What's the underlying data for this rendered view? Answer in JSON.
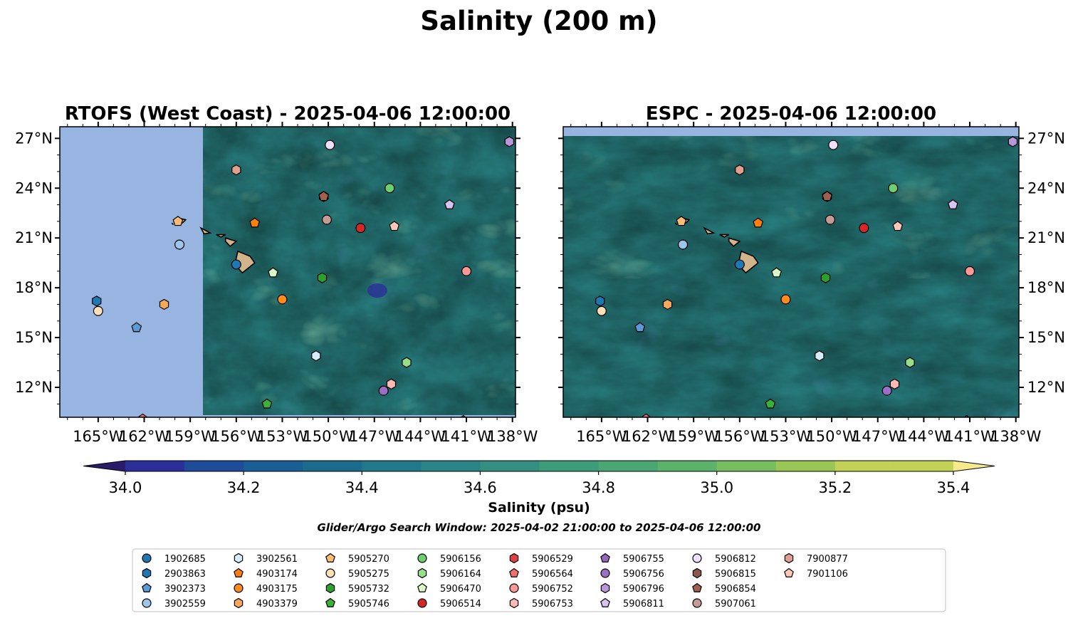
{
  "figure": {
    "title": "Salinity (200 m)",
    "colorbar_label": "Salinity (psu)",
    "search_window": "Glider/Argo Search Window: 2025-04-02 21:00:00 to 2025-04-06 12:00:00"
  },
  "colors": {
    "land_mask": "#98b4e0",
    "islands": "#d2b48c",
    "cmap": [
      "#2a1c6b",
      "#2c2f9a",
      "#1f4c9a",
      "#1a5e96",
      "#1a6b8c",
      "#21788a",
      "#2a8384",
      "#348f80",
      "#3c9c7a",
      "#4aa774",
      "#5cb26b",
      "#78bd5f",
      "#99c654",
      "#c3d157",
      "#f7ea8c"
    ]
  },
  "colorbar": {
    "ticks": [
      "34.0",
      "34.2",
      "34.4",
      "34.6",
      "34.8",
      "35.0",
      "35.2",
      "35.4"
    ],
    "min": 34.0,
    "max": 35.4,
    "step": 0.1
  },
  "axes": {
    "lon_ticks": [
      "165°W",
      "162°W",
      "159°W",
      "156°W",
      "153°W",
      "150°W",
      "147°W",
      "144°W",
      "141°W",
      "138°W"
    ],
    "lon_values": [
      -165,
      -162,
      -159,
      -156,
      -153,
      -150,
      -147,
      -144,
      -141,
      -138
    ],
    "lat_ticks": [
      "12°N",
      "15°N",
      "18°N",
      "21°N",
      "24°N",
      "27°N"
    ],
    "lat_values": [
      12,
      15,
      18,
      21,
      24,
      27
    ],
    "lon_range": [
      -167.5,
      -137.8
    ],
    "lat_range": [
      10.2,
      27.7
    ]
  },
  "panels": [
    {
      "title": "RTOFS (West Coast) - 2025-04-06 12:00:00",
      "data_lon_min": -158.2,
      "seed": 11
    },
    {
      "title": "ESPC - 2025-04-06 12:00:00",
      "data_lon_min": -167.5,
      "seed": 29
    }
  ],
  "platforms": [
    {
      "id": "1902685",
      "color": "#1f77b4",
      "marker": "circle",
      "lon": -156.0,
      "lat": 19.4
    },
    {
      "id": "2903863",
      "color": "#1f77b4",
      "marker": "hexagon",
      "lon": -165.1,
      "lat": 17.2
    },
    {
      "id": "3902373",
      "color": "#5a9bd5",
      "marker": "pentagon",
      "lon": -162.5,
      "lat": 15.6
    },
    {
      "id": "3902559",
      "color": "#9ec5ea",
      "marker": "circle",
      "lon": -159.7,
      "lat": 20.6
    },
    {
      "id": "3902561",
      "color": "#d6ecfb",
      "marker": "hexagon",
      "lon": -150.8,
      "lat": 13.9
    },
    {
      "id": "4903174",
      "color": "#ff7f0e",
      "marker": "pentagon",
      "lon": -154.8,
      "lat": 21.9
    },
    {
      "id": "4903175",
      "color": "#ff8c1a",
      "marker": "circle",
      "lon": -153.0,
      "lat": 17.3
    },
    {
      "id": "4903379",
      "color": "#f7a85a",
      "marker": "hexagon",
      "lon": -160.7,
      "lat": 17.0
    },
    {
      "id": "5905270",
      "color": "#ffbb78",
      "marker": "pentagon",
      "lon": -159.8,
      "lat": 22.0
    },
    {
      "id": "5905275",
      "color": "#ffe0b8",
      "marker": "circle",
      "lon": -165.0,
      "lat": 16.6
    },
    {
      "id": "5905732",
      "color": "#2ca02c",
      "marker": "hexagon",
      "lon": -150.4,
      "lat": 18.6
    },
    {
      "id": "5905746",
      "color": "#3bb03b",
      "marker": "pentagon",
      "lon": -154.0,
      "lat": 11.0
    },
    {
      "id": "5906156",
      "color": "#6ecf6e",
      "marker": "circle",
      "lon": -146.0,
      "lat": 24.0
    },
    {
      "id": "5906164",
      "color": "#98df8a",
      "marker": "hexagon",
      "lon": -144.9,
      "lat": 13.5
    },
    {
      "id": "5906470",
      "color": "#d8f8c8",
      "marker": "pentagon",
      "lon": -153.6,
      "lat": 18.9
    },
    {
      "id": "5906514",
      "color": "#d62728",
      "marker": "circle",
      "lon": -147.9,
      "lat": 21.6
    },
    {
      "id": "5906529",
      "color": "#e04040",
      "marker": "hexagon",
      "lon": -150.3,
      "lat": 23.5
    },
    {
      "id": "5906564",
      "color": "#f07070",
      "marker": "pentagon",
      "lon": -162.1,
      "lat": 10.1
    },
    {
      "id": "5906752",
      "color": "#ff9896",
      "marker": "circle",
      "lon": -141.0,
      "lat": 19.0
    },
    {
      "id": "5906753",
      "color": "#ffb8b6",
      "marker": "hexagon",
      "lon": -145.9,
      "lat": 12.2
    },
    {
      "id": "5906755",
      "color": "#9467bd",
      "marker": "pentagon",
      "lon": -141.2,
      "lat": 10.0
    },
    {
      "id": "5906756",
      "color": "#9a70c4",
      "marker": "circle",
      "lon": -146.4,
      "lat": 11.8
    },
    {
      "id": "5906796",
      "color": "#b896d8",
      "marker": "hexagon",
      "lon": -138.2,
      "lat": 26.8
    },
    {
      "id": "5906811",
      "color": "#d8c4f0",
      "marker": "pentagon",
      "lon": -142.1,
      "lat": 23.0
    },
    {
      "id": "5906812",
      "color": "#efe0ff",
      "marker": "circle",
      "lon": -149.9,
      "lat": 26.6
    },
    {
      "id": "5906815",
      "color": "#8c564b",
      "marker": "hexagon",
      "lon": -150.3,
      "lat": 23.5
    },
    {
      "id": "5906854",
      "color": "#a0604f",
      "marker": "pentagon",
      "lon": -150.3,
      "lat": 23.5
    },
    {
      "id": "5907061",
      "color": "#c49c94",
      "marker": "circle",
      "lon": -150.1,
      "lat": 22.1
    },
    {
      "id": "7900877",
      "color": "#e0a090",
      "marker": "hexagon",
      "lon": -156.0,
      "lat": 25.1
    },
    {
      "id": "7901106",
      "color": "#ffc8b8",
      "marker": "pentagon",
      "lon": -145.7,
      "lat": 21.7
    }
  ]
}
